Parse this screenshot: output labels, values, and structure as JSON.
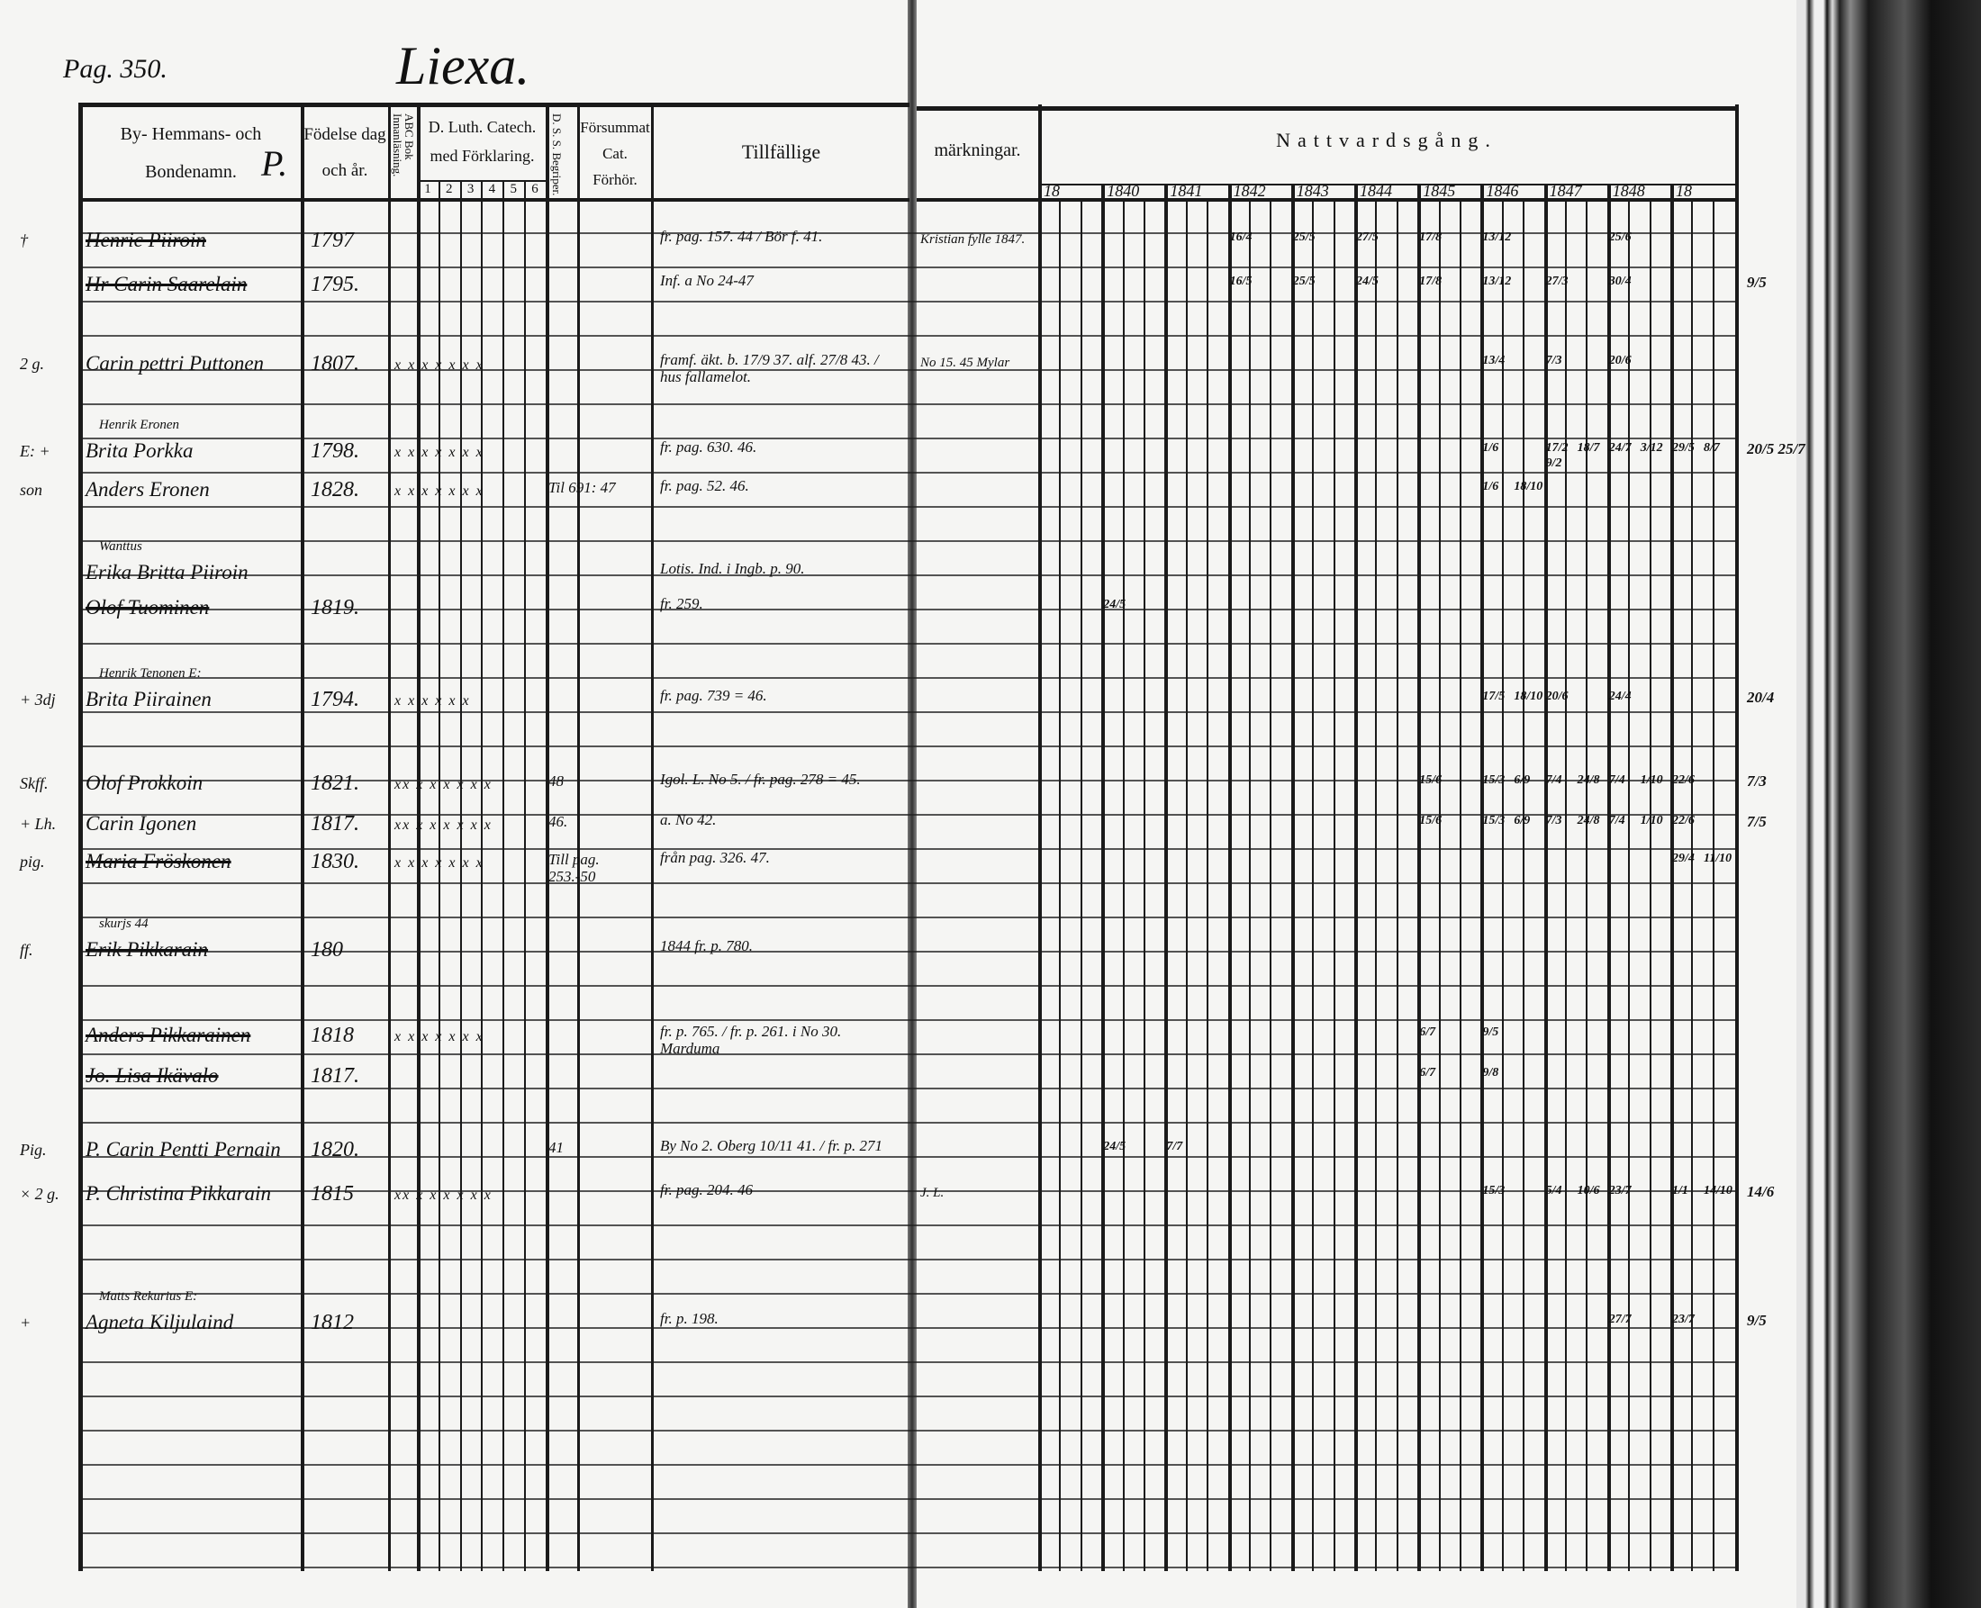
{
  "page": {
    "page_number": "Pag. 350.",
    "village": "Liexa."
  },
  "headers": {
    "names": "By- Hemmans- och Bondenamn.",
    "names_overlay": "P.",
    "birth": "Födelse dag och år.",
    "abc": "ABC Bok Innanläsning.",
    "catech": "D. Luth. Catech. med Förklaring.",
    "catech_sub": [
      "1",
      "2",
      "3",
      "4",
      "5",
      "6"
    ],
    "dss": "D. S. S. Begriper.",
    "forsummat": "Försummat Cat. Förhör.",
    "tillfallige": "Tillfällige",
    "markningar": "märkningar.",
    "nattvard": "Nattvardsgång.",
    "years": [
      "18",
      "1840",
      "1841",
      "1842",
      "1843",
      "1844",
      "1845",
      "1846",
      "1847",
      "1848",
      "18"
    ]
  },
  "rows": [
    {
      "margin": "†",
      "note": "",
      "name": "Henric Piiroin",
      "struck": true,
      "birth": "1797",
      "marks": "",
      "forsummat": "",
      "tillfallige": "fr. pag. 157. 44 / Bör f. 41.",
      "markningar": "Kristian fylle 1847.",
      "right_note": "",
      "communion": [
        {
          "year": "1842",
          "d": "16/4"
        },
        {
          "year": "1843",
          "d": "25/5"
        },
        {
          "year": "1844",
          "d": "27/5"
        },
        {
          "year": "1845",
          "d": "17/8"
        },
        {
          "year": "1846",
          "d": "13/12"
        },
        {
          "year": "1848",
          "d": "25/6"
        }
      ]
    },
    {
      "margin": "",
      "note": "",
      "name": "Hr Carin Saarelain",
      "struck": true,
      "birth": "1795.",
      "marks": "",
      "forsummat": "",
      "tillfallige": "Inf. a No 24-47",
      "markningar": "",
      "right_note": "9/5",
      "communion": [
        {
          "year": "1842",
          "d": "16/5"
        },
        {
          "year": "1843",
          "d": "25/5"
        },
        {
          "year": "1844",
          "d": "24/5"
        },
        {
          "year": "1845",
          "d": "17/8"
        },
        {
          "year": "1846",
          "d": "13/12"
        },
        {
          "year": "1847",
          "d": "27/3"
        },
        {
          "year": "1848",
          "d": "30/4"
        }
      ]
    },
    {
      "margin": "2 g.",
      "note": "",
      "name": "Carin pettri Puttonen",
      "struck": false,
      "birth": "1807.",
      "marks": "x x x x x x x",
      "forsummat": "",
      "tillfallige": "framf. äkt. b. 17/9 37. alf. 27/8 43. / hus fallamelot.",
      "markningar": "No 15. 45 Mylar",
      "right_note": "",
      "communion": [
        {
          "year": "1846",
          "d": "13/4"
        },
        {
          "year": "1847",
          "d": "7/3"
        },
        {
          "year": "1848",
          "d": "20/6"
        }
      ]
    },
    {
      "margin": "E: +",
      "note": "Henrik Eronen",
      "name": "Brita Porkka",
      "struck": false,
      "birth": "1798.",
      "marks": "x x x x x x x",
      "forsummat": "",
      "tillfallige": "fr. pag. 630. 46.",
      "markningar": "",
      "right_note": "20/5 25/7",
      "communion": [
        {
          "year": "1846",
          "d": "1/6"
        },
        {
          "year": "1847",
          "d": "17/2"
        },
        {
          "year": "1847",
          "d": "18/7"
        },
        {
          "year": "1847",
          "d": "9/2"
        },
        {
          "year": "1848",
          "d": "24/7"
        },
        {
          "year": "1848",
          "d": "3/12"
        },
        {
          "year": "18",
          "d": "29/5"
        },
        {
          "year": "18",
          "d": "8/7"
        }
      ]
    },
    {
      "margin": "son",
      "note": "",
      "name": "Anders Eronen",
      "struck": false,
      "birth": "1828.",
      "marks": "x x x x x x x",
      "forsummat": "Til 691: 47",
      "tillfallige": "fr. pag. 52. 46.",
      "markningar": "",
      "right_note": "",
      "communion": [
        {
          "year": "1846",
          "d": "1/6"
        },
        {
          "year": "1846",
          "d": "18/10"
        }
      ]
    },
    {
      "margin": "",
      "note": "Wanttus",
      "name": "Erika Britta Piiroin",
      "struck": false,
      "birth": "",
      "marks": "",
      "forsummat": "",
      "tillfallige": "Lotis. Ind. i Ingb. p. 90.",
      "markningar": "",
      "right_note": "",
      "communion": []
    },
    {
      "margin": "",
      "note": "",
      "name": "Olof Tuominen",
      "struck": true,
      "birth": "1819.",
      "marks": "",
      "forsummat": "",
      "tillfallige": "fr. 259.",
      "markningar": "",
      "right_note": "",
      "communion": [
        {
          "year": "1840",
          "d": "24/5"
        }
      ]
    },
    {
      "margin": "+ 3dj",
      "note": "Henrik Tenonen E:",
      "name": "Brita Piirainen",
      "struck": false,
      "birth": "1794.",
      "marks": "x x x x x x",
      "forsummat": "",
      "tillfallige": "fr. pag. 739 = 46.",
      "markningar": "",
      "right_note": "20/4",
      "communion": [
        {
          "year": "1846",
          "d": "17/5"
        },
        {
          "year": "1846",
          "d": "18/10"
        },
        {
          "year": "1847",
          "d": "20/6"
        },
        {
          "year": "1848",
          "d": "24/4"
        }
      ]
    },
    {
      "margin": "Skff.",
      "note": "",
      "name": "Olof Prokkoin",
      "struck": false,
      "birth": "1821.",
      "marks": "xx x x x x x x",
      "forsummat": "48",
      "tillfallige": "Igol. L. No 5. / fr. pag. 278 = 45.",
      "markningar": "",
      "right_note": "7/3",
      "communion": [
        {
          "year": "1845",
          "d": "15/6"
        },
        {
          "year": "1846",
          "d": "15/3"
        },
        {
          "year": "1846",
          "d": "6/9"
        },
        {
          "year": "1847",
          "d": "7/4"
        },
        {
          "year": "1847",
          "d": "24/8"
        },
        {
          "year": "1848",
          "d": "7/4"
        },
        {
          "year": "1848",
          "d": "1/10"
        },
        {
          "year": "18",
          "d": "22/6"
        }
      ]
    },
    {
      "margin": "+ Lh.",
      "note": "",
      "name": "Carin Igonen",
      "struck": false,
      "birth": "1817.",
      "marks": "xx x x x x x x",
      "forsummat": "46.",
      "tillfallige": "a. No 42.",
      "markningar": "",
      "right_note": "7/5",
      "communion": [
        {
          "year": "1845",
          "d": "15/6"
        },
        {
          "year": "1846",
          "d": "15/3"
        },
        {
          "year": "1846",
          "d": "6/9"
        },
        {
          "year": "1847",
          "d": "7/3"
        },
        {
          "year": "1847",
          "d": "24/8"
        },
        {
          "year": "1848",
          "d": "7/4"
        },
        {
          "year": "1848",
          "d": "1/10"
        },
        {
          "year": "18",
          "d": "22/6"
        }
      ]
    },
    {
      "margin": "pig.",
      "note": "",
      "name": "Maria Fröskonen",
      "struck": true,
      "birth": "1830.",
      "marks": "x x x x x x x",
      "forsummat": "Till pag. 253.-50",
      "tillfallige": "från pag. 326. 47.",
      "markningar": "",
      "right_note": "",
      "communion": [
        {
          "year": "18",
          "d": "29/4"
        },
        {
          "year": "18",
          "d": "11/10"
        }
      ]
    },
    {
      "margin": "ff.",
      "note": "skurjs 44",
      "name": "Erik Pikkarain",
      "struck": true,
      "birth": "180",
      "marks": "",
      "forsummat": "",
      "tillfallige": "1844 fr. p. 780.",
      "markningar": "",
      "right_note": "",
      "communion": []
    },
    {
      "margin": "",
      "note": "",
      "name": "Anders Pikkarainen",
      "struck": true,
      "birth": "1818",
      "marks": "x x x x x x x",
      "forsummat": "",
      "tillfallige": "fr. p. 765. / fr. p. 261. i No 30. Marduma",
      "markningar": "",
      "right_note": "",
      "communion": [
        {
          "year": "1845",
          "d": "6/7"
        },
        {
          "year": "1846",
          "d": "9/5"
        }
      ]
    },
    {
      "margin": "",
      "note": "",
      "name": "Jo. Lisa Ikävalo",
      "struck": true,
      "birth": "1817.",
      "marks": "",
      "forsummat": "",
      "tillfallige": "",
      "markningar": "",
      "right_note": "",
      "communion": [
        {
          "year": "1845",
          "d": "6/7"
        },
        {
          "year": "1846",
          "d": "9/8"
        }
      ]
    },
    {
      "margin": "Pig.",
      "note": "",
      "name": "P. Carin Pentti Pernain",
      "struck": false,
      "birth": "1820.",
      "marks": "",
      "forsummat": "41",
      "tillfallige": "By No 2. Oberg 10/11 41. / fr. p. 271",
      "markningar": "",
      "right_note": "",
      "communion": [
        {
          "year": "1840",
          "d": "24/5"
        },
        {
          "year": "1841",
          "d": "7/7"
        }
      ]
    },
    {
      "margin": "× 2 g.",
      "note": "",
      "name": "P. Christina Pikkarain",
      "struck": false,
      "birth": "1815",
      "marks": "xx x x x x x x",
      "forsummat": "",
      "tillfallige": "fr. pag. 204. 46",
      "markningar": "J. L.",
      "right_note": "14/6",
      "communion": [
        {
          "year": "1846",
          "d": "15/3"
        },
        {
          "year": "1847",
          "d": "5/4"
        },
        {
          "year": "1847",
          "d": "10/6"
        },
        {
          "year": "1848",
          "d": "23/7"
        },
        {
          "year": "18",
          "d": "1/1"
        },
        {
          "year": "18",
          "d": "14/10"
        }
      ]
    },
    {
      "margin": "+",
      "note": "Matts Rekurius E:",
      "name": "Agneta Kiljulaind",
      "struck": false,
      "birth": "1812",
      "marks": "",
      "forsummat": "",
      "tillfallige": "fr. p. 198.",
      "markningar": "",
      "right_note": "9/5",
      "communion": [
        {
          "year": "1848",
          "d": "27/7"
        },
        {
          "year": "18",
          "d": "23/7"
        }
      ]
    }
  ]
}
